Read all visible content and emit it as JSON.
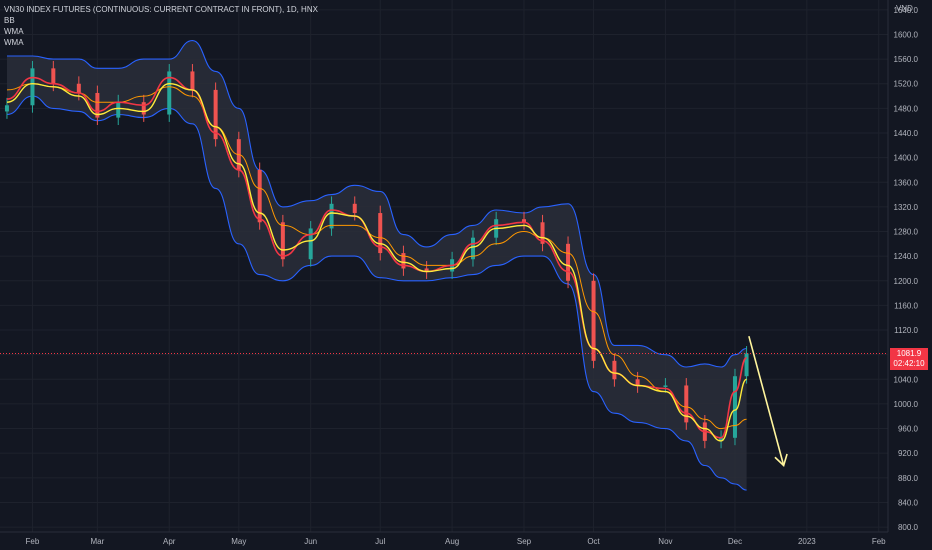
{
  "legend": {
    "title": "VN30 INDEX FUTURES (CONTINUOUS: CURRENT CONTRACT IN FRONT), 1D, HNX",
    "indicators": [
      "BB",
      "WMA",
      "WMA"
    ]
  },
  "axis_unit": "VND",
  "last_price": "1081.9",
  "countdown": "02:42:10",
  "colors": {
    "background": "#131722",
    "band": "#2962ff",
    "band_fill": "#2a2e39",
    "fast_wma": "#f23645",
    "slow_wma": "#ff9800",
    "yellow_ma": "#ffeb3b",
    "up": "#26a69a",
    "down": "#ef5350",
    "arrow": "#fff59d",
    "price_line": "#f23645"
  },
  "chart_data": {
    "type": "line",
    "title": "VN30 INDEX FUTURES (CONTINUOUS: CURRENT CONTRACT IN FRONT), 1D, HNX",
    "ylabel": "VND",
    "ylim": [
      792,
      1656
    ],
    "y_ticks": [
      800.0,
      840.0,
      880.0,
      920.0,
      960.0,
      1000.0,
      1040.0,
      1080.0,
      1120.0,
      1160.0,
      1200.0,
      1240.0,
      1280.0,
      1320.0,
      1360.0,
      1400.0,
      1440.0,
      1480.0,
      1520.0,
      1560.0,
      1600.0,
      1640.0
    ],
    "x_ticks": [
      "Feb",
      "Mar",
      "Apr",
      "May",
      "Jun",
      "Jul",
      "Aug",
      "Sep",
      "Oct",
      "Nov",
      "Dec",
      "2023",
      "Feb"
    ],
    "x": [
      "2022-01-21",
      "2022-02-01",
      "2022-02-10",
      "2022-02-21",
      "2022-03-01",
      "2022-03-10",
      "2022-03-21",
      "2022-04-01",
      "2022-04-11",
      "2022-04-21",
      "2022-05-01",
      "2022-05-10",
      "2022-05-20",
      "2022-06-01",
      "2022-06-10",
      "2022-06-20",
      "2022-07-01",
      "2022-07-11",
      "2022-07-21",
      "2022-08-01",
      "2022-08-10",
      "2022-08-20",
      "2022-09-01",
      "2022-09-09",
      "2022-09-20",
      "2022-10-01",
      "2022-10-10",
      "2022-10-20",
      "2022-11-01",
      "2022-11-10",
      "2022-11-18",
      "2022-11-25",
      "2022-12-01",
      "2022-12-06"
    ],
    "series": [
      {
        "name": "Close",
        "values": [
          1485,
          1545,
          1520,
          1505,
          1465,
          1490,
          1470,
          1540,
          1510,
          1430,
          1380,
          1295,
          1235,
          1285,
          1325,
          1310,
          1245,
          1220,
          1215,
          1235,
          1270,
          1300,
          1295,
          1260,
          1200,
          1070,
          1040,
          1030,
          1030,
          970,
          940,
          945,
          1045,
          1082
        ]
      },
      {
        "name": "BB Upper",
        "values": [
          1565,
          1565,
          1560,
          1560,
          1545,
          1545,
          1560,
          1560,
          1590,
          1540,
          1480,
          1380,
          1320,
          1330,
          1340,
          1355,
          1345,
          1275,
          1255,
          1275,
          1290,
          1315,
          1310,
          1320,
          1325,
          1210,
          1095,
          1095,
          1080,
          1060,
          1065,
          1060,
          1080,
          1090
        ]
      },
      {
        "name": "BB Lower",
        "values": [
          1470,
          1500,
          1480,
          1475,
          1460,
          1470,
          1465,
          1480,
          1455,
          1350,
          1260,
          1210,
          1200,
          1225,
          1240,
          1240,
          1205,
          1200,
          1200,
          1205,
          1210,
          1225,
          1240,
          1240,
          1195,
          1020,
          985,
          970,
          960,
          940,
          900,
          880,
          870,
          860
        ]
      },
      {
        "name": "WMA slow",
        "values": [
          1510,
          1520,
          1515,
          1505,
          1490,
          1490,
          1500,
          1515,
          1500,
          1450,
          1405,
          1350,
          1290,
          1275,
          1290,
          1290,
          1270,
          1240,
          1225,
          1225,
          1240,
          1260,
          1280,
          1270,
          1245,
          1150,
          1080,
          1045,
          1020,
          995,
          975,
          960,
          965,
          975
        ]
      },
      {
        "name": "WMA fast",
        "values": [
          1495,
          1530,
          1520,
          1505,
          1475,
          1490,
          1485,
          1530,
          1510,
          1440,
          1380,
          1300,
          1240,
          1275,
          1315,
          1305,
          1255,
          1225,
          1215,
          1225,
          1260,
          1290,
          1295,
          1265,
          1215,
          1090,
          1050,
          1030,
          1025,
          985,
          955,
          945,
          1020,
          1075
        ]
      },
      {
        "name": "MA yellow",
        "values": [
          1490,
          1520,
          1515,
          1500,
          1470,
          1480,
          1475,
          1520,
          1510,
          1450,
          1390,
          1310,
          1250,
          1265,
          1310,
          1305,
          1260,
          1230,
          1215,
          1220,
          1255,
          1285,
          1290,
          1270,
          1225,
          1090,
          1050,
          1030,
          1020,
          980,
          960,
          940,
          990,
          1040
        ]
      }
    ],
    "annotations": [
      {
        "type": "arrow",
        "from": [
          "2022-12-07",
          1110
        ],
        "to": [
          "2022-12-22",
          900
        ]
      },
      {
        "type": "price_line",
        "y": 1081.9
      }
    ]
  }
}
